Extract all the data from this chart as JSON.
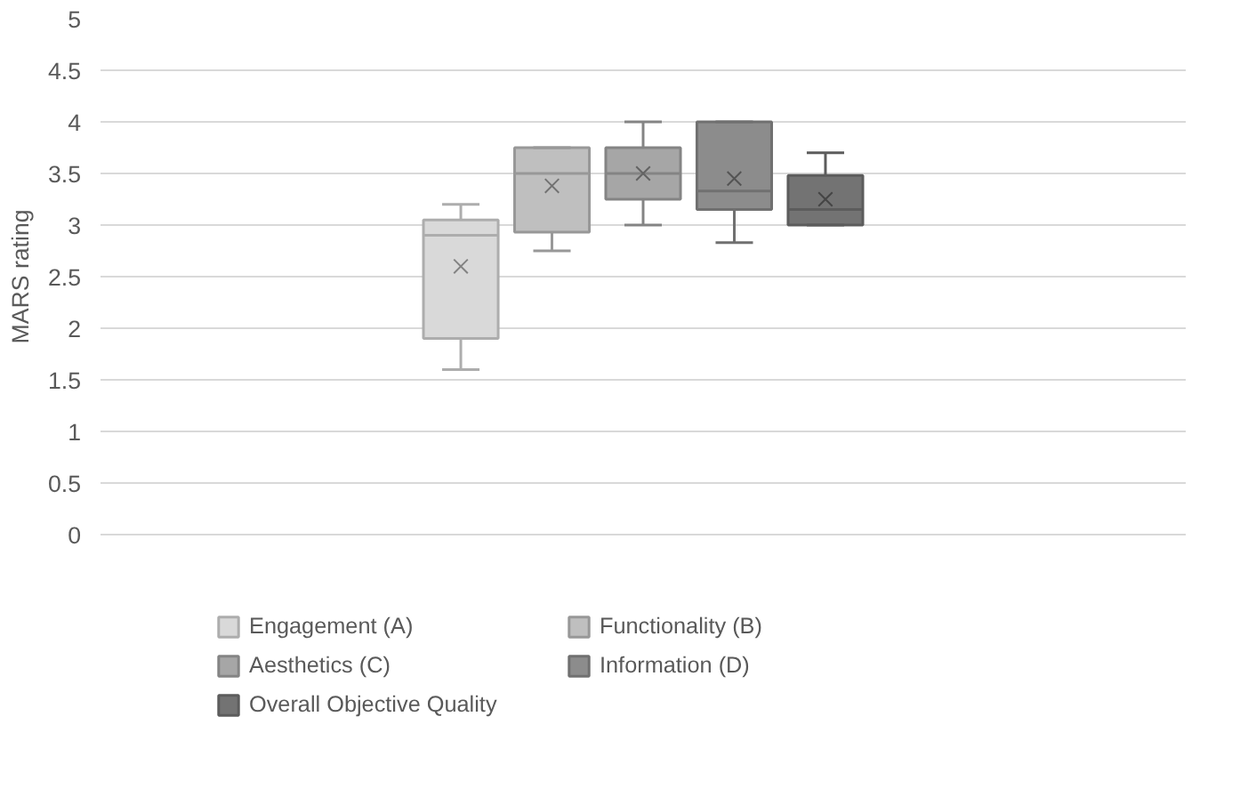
{
  "chart_data": {
    "type": "box",
    "ylabel": "MARS rating",
    "categories": [
      null
    ],
    "ylim": [
      0,
      5
    ],
    "yticks": [
      0,
      0.5,
      1,
      1.5,
      2,
      2.5,
      3,
      3.5,
      4,
      4.5,
      5
    ],
    "grid": "y",
    "legend": "bottom",
    "tick_labels": "y",
    "series": [
      {
        "name": "Engagement (A)",
        "color": "#d9d9d9",
        "boxes": [
          {
            "low": 1.6,
            "q1": 1.9,
            "median": 2.9,
            "q3": 3.05,
            "high": 3.2,
            "mean": 2.6
          }
        ]
      },
      {
        "name": "Functionality (B)",
        "color": "#bfbfbf",
        "boxes": [
          {
            "low": 2.75,
            "q1": 2.93,
            "median": 3.5,
            "q3": 3.75,
            "high": 3.75,
            "mean": 3.38
          }
        ]
      },
      {
        "name": "Aesthetics (C)",
        "color": "#a6a6a6",
        "boxes": [
          {
            "low": 3.0,
            "q1": 3.25,
            "median": 3.5,
            "q3": 3.75,
            "high": 4.0,
            "mean": 3.5
          }
        ]
      },
      {
        "name": "Information (D)",
        "color": "#8c8c8c",
        "boxes": [
          {
            "low": 2.83,
            "q1": 3.15,
            "median": 3.33,
            "q3": 4.0,
            "high": 4.0,
            "mean": 3.45
          }
        ]
      },
      {
        "name": "Overall Objective Quality",
        "color": "#737373",
        "boxes": [
          {
            "low": 3.0,
            "q1": 3.0,
            "median": 3.15,
            "q3": 3.48,
            "high": 3.7,
            "mean": 3.25
          }
        ]
      }
    ]
  }
}
